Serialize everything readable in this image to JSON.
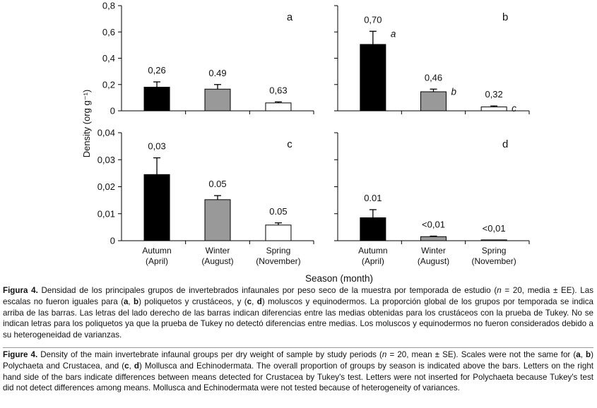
{
  "chart_data": {
    "type": "bar",
    "xlabel": "Season (month)",
    "ylabel": "Density (org g⁻¹)",
    "categories": [
      {
        "name": "Autumn",
        "month": "(April)"
      },
      {
        "name": "Winter",
        "month": "(August)"
      },
      {
        "name": "Spring",
        "month": "(November)"
      }
    ],
    "colors": [
      "#000000",
      "#999999",
      "#ffffff"
    ],
    "panels": [
      {
        "id": "a",
        "label": "a",
        "group": "Polychaeta",
        "ylim": [
          0,
          0.8
        ],
        "yticks": [
          "0",
          "0,2",
          "0,4",
          "0,6",
          "0,8"
        ],
        "tick_values": [
          0,
          0.2,
          0.4,
          0.6,
          0.8
        ],
        "values": [
          0.18,
          0.165,
          0.06
        ],
        "errors": [
          0.04,
          0.035,
          0.008
        ],
        "proportions": [
          "0,26",
          "0.49",
          "0,63"
        ],
        "letters": [
          "",
          "",
          ""
        ]
      },
      {
        "id": "b",
        "label": "b",
        "group": "Crustacea",
        "ylim": [
          0,
          0.8
        ],
        "yticks": [],
        "tick_values": [
          0,
          0.2,
          0.4,
          0.6,
          0.8
        ],
        "values": [
          0.505,
          0.145,
          0.03
        ],
        "errors": [
          0.1,
          0.02,
          0.007
        ],
        "proportions": [
          "0,70",
          "0,46",
          "0,32"
        ],
        "letters": [
          "a",
          "b",
          "c"
        ]
      },
      {
        "id": "c",
        "label": "c",
        "group": "Mollusca",
        "ylim": [
          0,
          0.04
        ],
        "yticks": [
          "0",
          "0,01",
          "0,02",
          "0,03",
          "0,04"
        ],
        "tick_values": [
          0,
          0.01,
          0.02,
          0.03,
          0.04
        ],
        "values": [
          0.0245,
          0.0152,
          0.0058
        ],
        "errors": [
          0.0062,
          0.0015,
          0.0008
        ],
        "proportions": [
          "0,03",
          "0.05",
          "0.05"
        ],
        "letters": [
          "",
          "",
          ""
        ]
      },
      {
        "id": "d",
        "label": "d",
        "group": "Echinodermata",
        "ylim": [
          0,
          0.04
        ],
        "yticks": [],
        "tick_values": [
          0,
          0.01,
          0.02,
          0.03,
          0.04
        ],
        "values": [
          0.0085,
          0.0015,
          0.0003
        ],
        "errors": [
          0.003,
          0.0002,
          0.0
        ],
        "proportions": [
          "0.01",
          "<0,01",
          "<0,01"
        ],
        "letters": [
          "",
          "",
          ""
        ]
      }
    ]
  },
  "caption_es": {
    "label": "Figura 4.",
    "p1": " Densidad de los principales grupos de invertebrados infaunales por peso seco de la muestra por temporada de estudio (",
    "n": "n",
    "p2": " = 20, media ± EE). Las escalas no fueron iguales para (",
    "a": "a",
    "p3": ", ",
    "b": "b",
    "p4": ") poliquetos y crustáceos, y (",
    "c": "c",
    "p5": ", ",
    "d": "d",
    "p6": ") moluscos y equinodermos. La proporción global de los grupos por temporada se indica arriba de las barras. Las letras del lado derecho de las barras indican diferencias entre las medias obtenidas para los crustáceos con la prueba de Tukey. No se indican letras para los poliquetos ya que la prueba de Tukey no detectó diferencias entre medias. Los moluscos y equinodermos no fueron considerados debido a su heterogeneidad de varianzas."
  },
  "caption_en": {
    "label": "Figure 4.",
    "p1": " Density of the main invertebrate infaunal groups per dry weight of sample by study periods (",
    "n": "n",
    "p2": " = 20, mean ± SE). Scales were not the same for (",
    "a": "a",
    "p3": ", ",
    "b": "b",
    "p4": ") Polychaeta and Crustacea, and (",
    "c": "c",
    "p5": ", ",
    "d": "d",
    "p6": ") Mollusca and Echinodermata. The overall proportion of groups by season is indicated above the bars. Letters on the right hand side of the bars indicate differences between means detected for Crustacea by Tukey's test. Letters were not inserted for Polychaeta because Tukey's test did not detect differences among means. Mollusca and Echinodermata were not tested because of heterogeneity of variances."
  }
}
